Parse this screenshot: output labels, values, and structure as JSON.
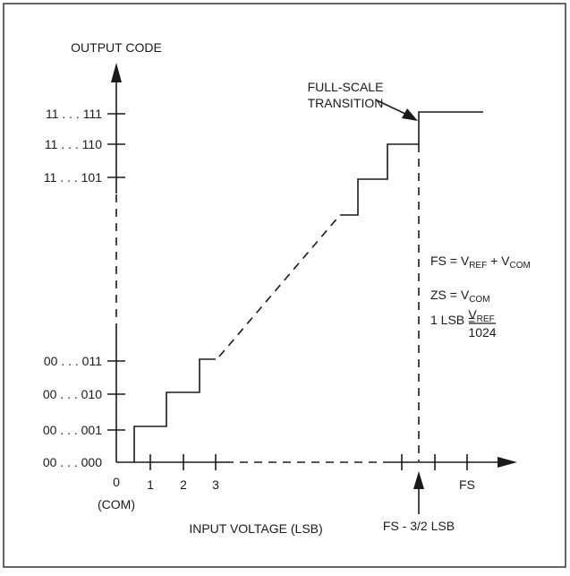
{
  "diagram": {
    "y_axis_title": "OUTPUT CODE",
    "x_axis_title": "INPUT VOLTAGE (LSB)",
    "y_codes": [
      "00 . . . 000",
      "00 . . . 001",
      "00 . . . 010",
      "00 . . . 011",
      "11 . . . 101",
      "11 . . . 110",
      "11 . . . 111"
    ],
    "x_ticks": [
      "0",
      "1",
      "2",
      "3"
    ],
    "x_zero_sub": "(COM)",
    "x_fs": "FS",
    "fs_marker": "FS - 3/2 LSB",
    "callout_line1": "FULL-SCALE",
    "callout_line2": "TRANSITION",
    "eq_fs_lhs": "FS = V",
    "eq_fs_ref": "REF",
    "eq_fs_plus": " + V",
    "eq_fs_com": "COM",
    "eq_zs_lhs": "ZS = V",
    "eq_zs_com": "COM",
    "eq_lsb_lhs": "1 LSB =",
    "eq_lsb_num_v": "V",
    "eq_lsb_num_ref": "REF",
    "eq_lsb_den": "1024"
  }
}
